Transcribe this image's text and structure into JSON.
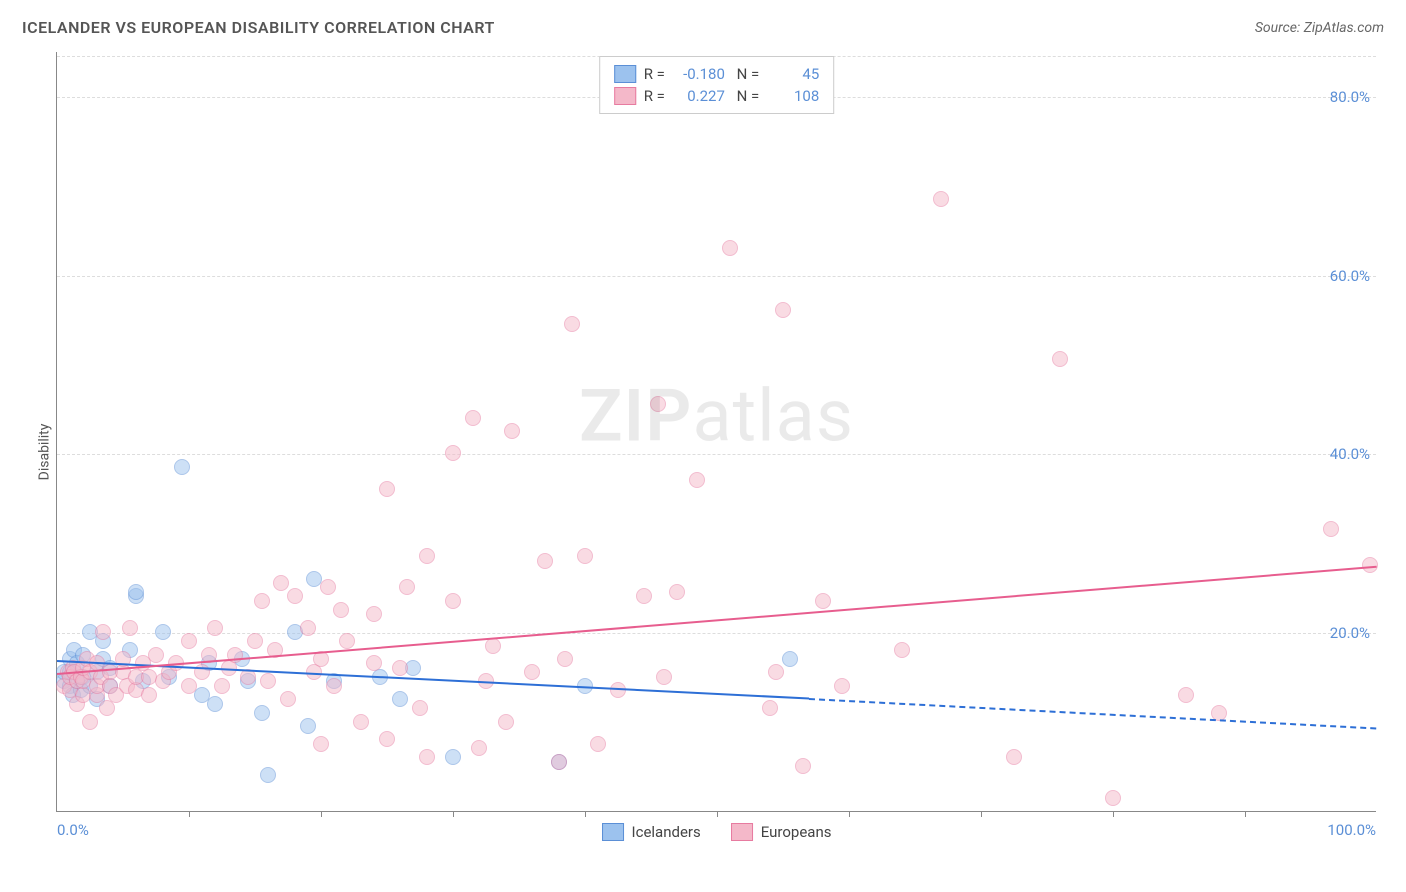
{
  "title": "ICELANDER VS EUROPEAN DISABILITY CORRELATION CHART",
  "source": "Source: ZipAtlas.com",
  "ylabel": "Disability",
  "watermark": {
    "bold": "ZIP",
    "light": "atlas"
  },
  "chart": {
    "type": "scatter",
    "xlim": [
      0,
      100
    ],
    "ylim": [
      0,
      85
    ],
    "x_tick_labels": {
      "left": "0.0%",
      "right": "100.0%"
    },
    "x_minor_ticks_step": 10,
    "y_gridlines": [
      20,
      40,
      60,
      80
    ],
    "y_tick_labels": [
      "20.0%",
      "40.0%",
      "60.0%",
      "80.0%"
    ],
    "grid_color": "#dddddd",
    "axis_color": "#888888",
    "background_color": "#ffffff",
    "tick_label_color": "#5b8fd6",
    "marker_radius": 8,
    "marker_opacity": 0.5,
    "series": [
      {
        "name": "Icelanders",
        "fill": "#9cc2ee",
        "stroke": "#5b8fd6",
        "trend_color": "#2d6fd6",
        "R": "-0.180",
        "N": "45",
        "trend": {
          "x0": 0,
          "y0": 17.0,
          "x_solid_end": 57,
          "y_solid_end": 12.8,
          "x1": 100,
          "y1": 9.5
        },
        "points": [
          [
            0.5,
            14.5
          ],
          [
            0.5,
            15.5
          ],
          [
            1.0,
            14.0
          ],
          [
            1.0,
            15.5
          ],
          [
            1.0,
            17.0
          ],
          [
            1.2,
            13.0
          ],
          [
            1.3,
            18.0
          ],
          [
            1.5,
            14.5
          ],
          [
            1.5,
            16.5
          ],
          [
            1.8,
            13.5
          ],
          [
            2.0,
            15.0
          ],
          [
            2.0,
            17.5
          ],
          [
            2.5,
            14.0
          ],
          [
            2.5,
            20.0
          ],
          [
            3.0,
            15.5
          ],
          [
            3.0,
            12.5
          ],
          [
            3.5,
            17.0
          ],
          [
            3.5,
            19.0
          ],
          [
            4.0,
            14.0
          ],
          [
            4.0,
            16.0
          ],
          [
            5.5,
            18.0
          ],
          [
            6.0,
            24.0
          ],
          [
            6.0,
            24.5
          ],
          [
            6.5,
            14.5
          ],
          [
            8.0,
            20.0
          ],
          [
            8.5,
            15.0
          ],
          [
            9.5,
            38.5
          ],
          [
            11.0,
            13.0
          ],
          [
            11.5,
            16.5
          ],
          [
            12.0,
            12.0
          ],
          [
            14.0,
            17.0
          ],
          [
            14.5,
            14.5
          ],
          [
            15.5,
            11.0
          ],
          [
            16.0,
            4.0
          ],
          [
            18.0,
            20.0
          ],
          [
            19.5,
            26.0
          ],
          [
            19.0,
            9.5
          ],
          [
            21.0,
            14.5
          ],
          [
            24.5,
            15.0
          ],
          [
            26.0,
            12.5
          ],
          [
            27.0,
            16.0
          ],
          [
            30.0,
            6.0
          ],
          [
            38.0,
            5.5
          ],
          [
            40.0,
            14.0
          ],
          [
            55.5,
            17.0
          ]
        ]
      },
      {
        "name": "Europeans",
        "fill": "#f4b8c9",
        "stroke": "#e77ba0",
        "trend_color": "#e75d8e",
        "R": "0.227",
        "N": "108",
        "trend": {
          "x0": 0,
          "y0": 15.5,
          "x_solid_end": 100,
          "y_solid_end": 27.5,
          "x1": 100,
          "y1": 27.5
        },
        "points": [
          [
            0.5,
            14.0
          ],
          [
            0.8,
            15.5
          ],
          [
            1.0,
            13.5
          ],
          [
            1.0,
            15.0
          ],
          [
            1.2,
            16.0
          ],
          [
            1.3,
            15.5
          ],
          [
            1.5,
            12.0
          ],
          [
            1.5,
            14.5
          ],
          [
            1.8,
            15.0
          ],
          [
            2.0,
            13.0
          ],
          [
            2.0,
            14.5
          ],
          [
            2.0,
            16.0
          ],
          [
            2.3,
            17.0
          ],
          [
            2.5,
            10.0
          ],
          [
            2.5,
            15.5
          ],
          [
            3.0,
            13.0
          ],
          [
            3.0,
            14.0
          ],
          [
            3.0,
            16.5
          ],
          [
            3.3,
            15.0
          ],
          [
            3.5,
            20.0
          ],
          [
            3.8,
            11.5
          ],
          [
            4.0,
            14.0
          ],
          [
            4.0,
            15.5
          ],
          [
            4.5,
            13.0
          ],
          [
            5.0,
            15.5
          ],
          [
            5.0,
            17.0
          ],
          [
            5.3,
            14.0
          ],
          [
            5.5,
            20.5
          ],
          [
            6.0,
            13.5
          ],
          [
            6.0,
            15.0
          ],
          [
            6.5,
            16.5
          ],
          [
            7.0,
            13.0
          ],
          [
            7.0,
            15.0
          ],
          [
            7.5,
            17.5
          ],
          [
            8.0,
            14.5
          ],
          [
            8.5,
            15.5
          ],
          [
            9.0,
            16.5
          ],
          [
            10.0,
            14.0
          ],
          [
            10.0,
            19.0
          ],
          [
            11.0,
            15.5
          ],
          [
            11.5,
            17.5
          ],
          [
            12.0,
            20.5
          ],
          [
            12.5,
            14.0
          ],
          [
            13.0,
            16.0
          ],
          [
            13.5,
            17.5
          ],
          [
            14.5,
            15.0
          ],
          [
            15.0,
            19.0
          ],
          [
            15.5,
            23.5
          ],
          [
            16.0,
            14.5
          ],
          [
            16.5,
            18.0
          ],
          [
            17.0,
            25.5
          ],
          [
            17.5,
            12.5
          ],
          [
            18.0,
            24.0
          ],
          [
            19.0,
            20.5
          ],
          [
            19.5,
            15.5
          ],
          [
            20.0,
            7.5
          ],
          [
            20.0,
            17.0
          ],
          [
            20.5,
            25.0
          ],
          [
            21.0,
            14.0
          ],
          [
            21.5,
            22.5
          ],
          [
            22.0,
            19.0
          ],
          [
            23.0,
            10.0
          ],
          [
            24.0,
            16.5
          ],
          [
            24.0,
            22.0
          ],
          [
            25.0,
            8.0
          ],
          [
            25.0,
            36.0
          ],
          [
            26.0,
            16.0
          ],
          [
            26.5,
            25.0
          ],
          [
            27.5,
            11.5
          ],
          [
            28.0,
            6.0
          ],
          [
            28.0,
            28.5
          ],
          [
            30.0,
            23.5
          ],
          [
            30.0,
            40.0
          ],
          [
            31.5,
            44.0
          ],
          [
            32.0,
            7.0
          ],
          [
            32.5,
            14.5
          ],
          [
            33.0,
            18.5
          ],
          [
            34.0,
            10.0
          ],
          [
            34.5,
            42.5
          ],
          [
            36.0,
            15.5
          ],
          [
            37.0,
            28.0
          ],
          [
            38.0,
            5.5
          ],
          [
            38.5,
            17.0
          ],
          [
            39.0,
            54.5
          ],
          [
            40.0,
            28.5
          ],
          [
            41.0,
            7.5
          ],
          [
            42.5,
            13.5
          ],
          [
            44.5,
            24.0
          ],
          [
            45.5,
            45.5
          ],
          [
            46.0,
            15.0
          ],
          [
            47.0,
            24.5
          ],
          [
            48.5,
            37.0
          ],
          [
            51.0,
            63.0
          ],
          [
            54.0,
            11.5
          ],
          [
            54.5,
            15.5
          ],
          [
            55.0,
            56.0
          ],
          [
            56.5,
            5.0
          ],
          [
            58.0,
            23.5
          ],
          [
            59.5,
            14.0
          ],
          [
            64.0,
            18.0
          ],
          [
            67.0,
            68.5
          ],
          [
            72.5,
            6.0
          ],
          [
            76.0,
            50.5
          ],
          [
            80.0,
            1.5
          ],
          [
            85.5,
            13.0
          ],
          [
            88.0,
            11.0
          ],
          [
            96.5,
            31.5
          ],
          [
            99.5,
            27.5
          ]
        ]
      }
    ]
  },
  "legend_bottom": [
    "Icelanders",
    "Europeans"
  ]
}
